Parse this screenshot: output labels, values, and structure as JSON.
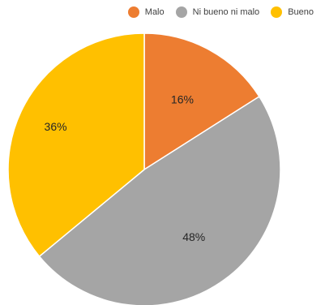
{
  "chart_data": {
    "type": "pie",
    "title": "",
    "categories": [
      "Malo",
      "Ni bueno ni malo",
      "Bueno"
    ],
    "values": [
      16,
      48,
      36
    ],
    "labels": [
      "16%",
      "48%",
      "36%"
    ],
    "colors": [
      "#ED7D31",
      "#A5A5A5",
      "#FFC000"
    ],
    "start_angle_deg": 0,
    "direction": "clockwise",
    "legend": {
      "position": "top-right",
      "entries": [
        "Malo",
        "Ni bueno ni malo",
        "Bueno"
      ]
    },
    "grid": false
  }
}
